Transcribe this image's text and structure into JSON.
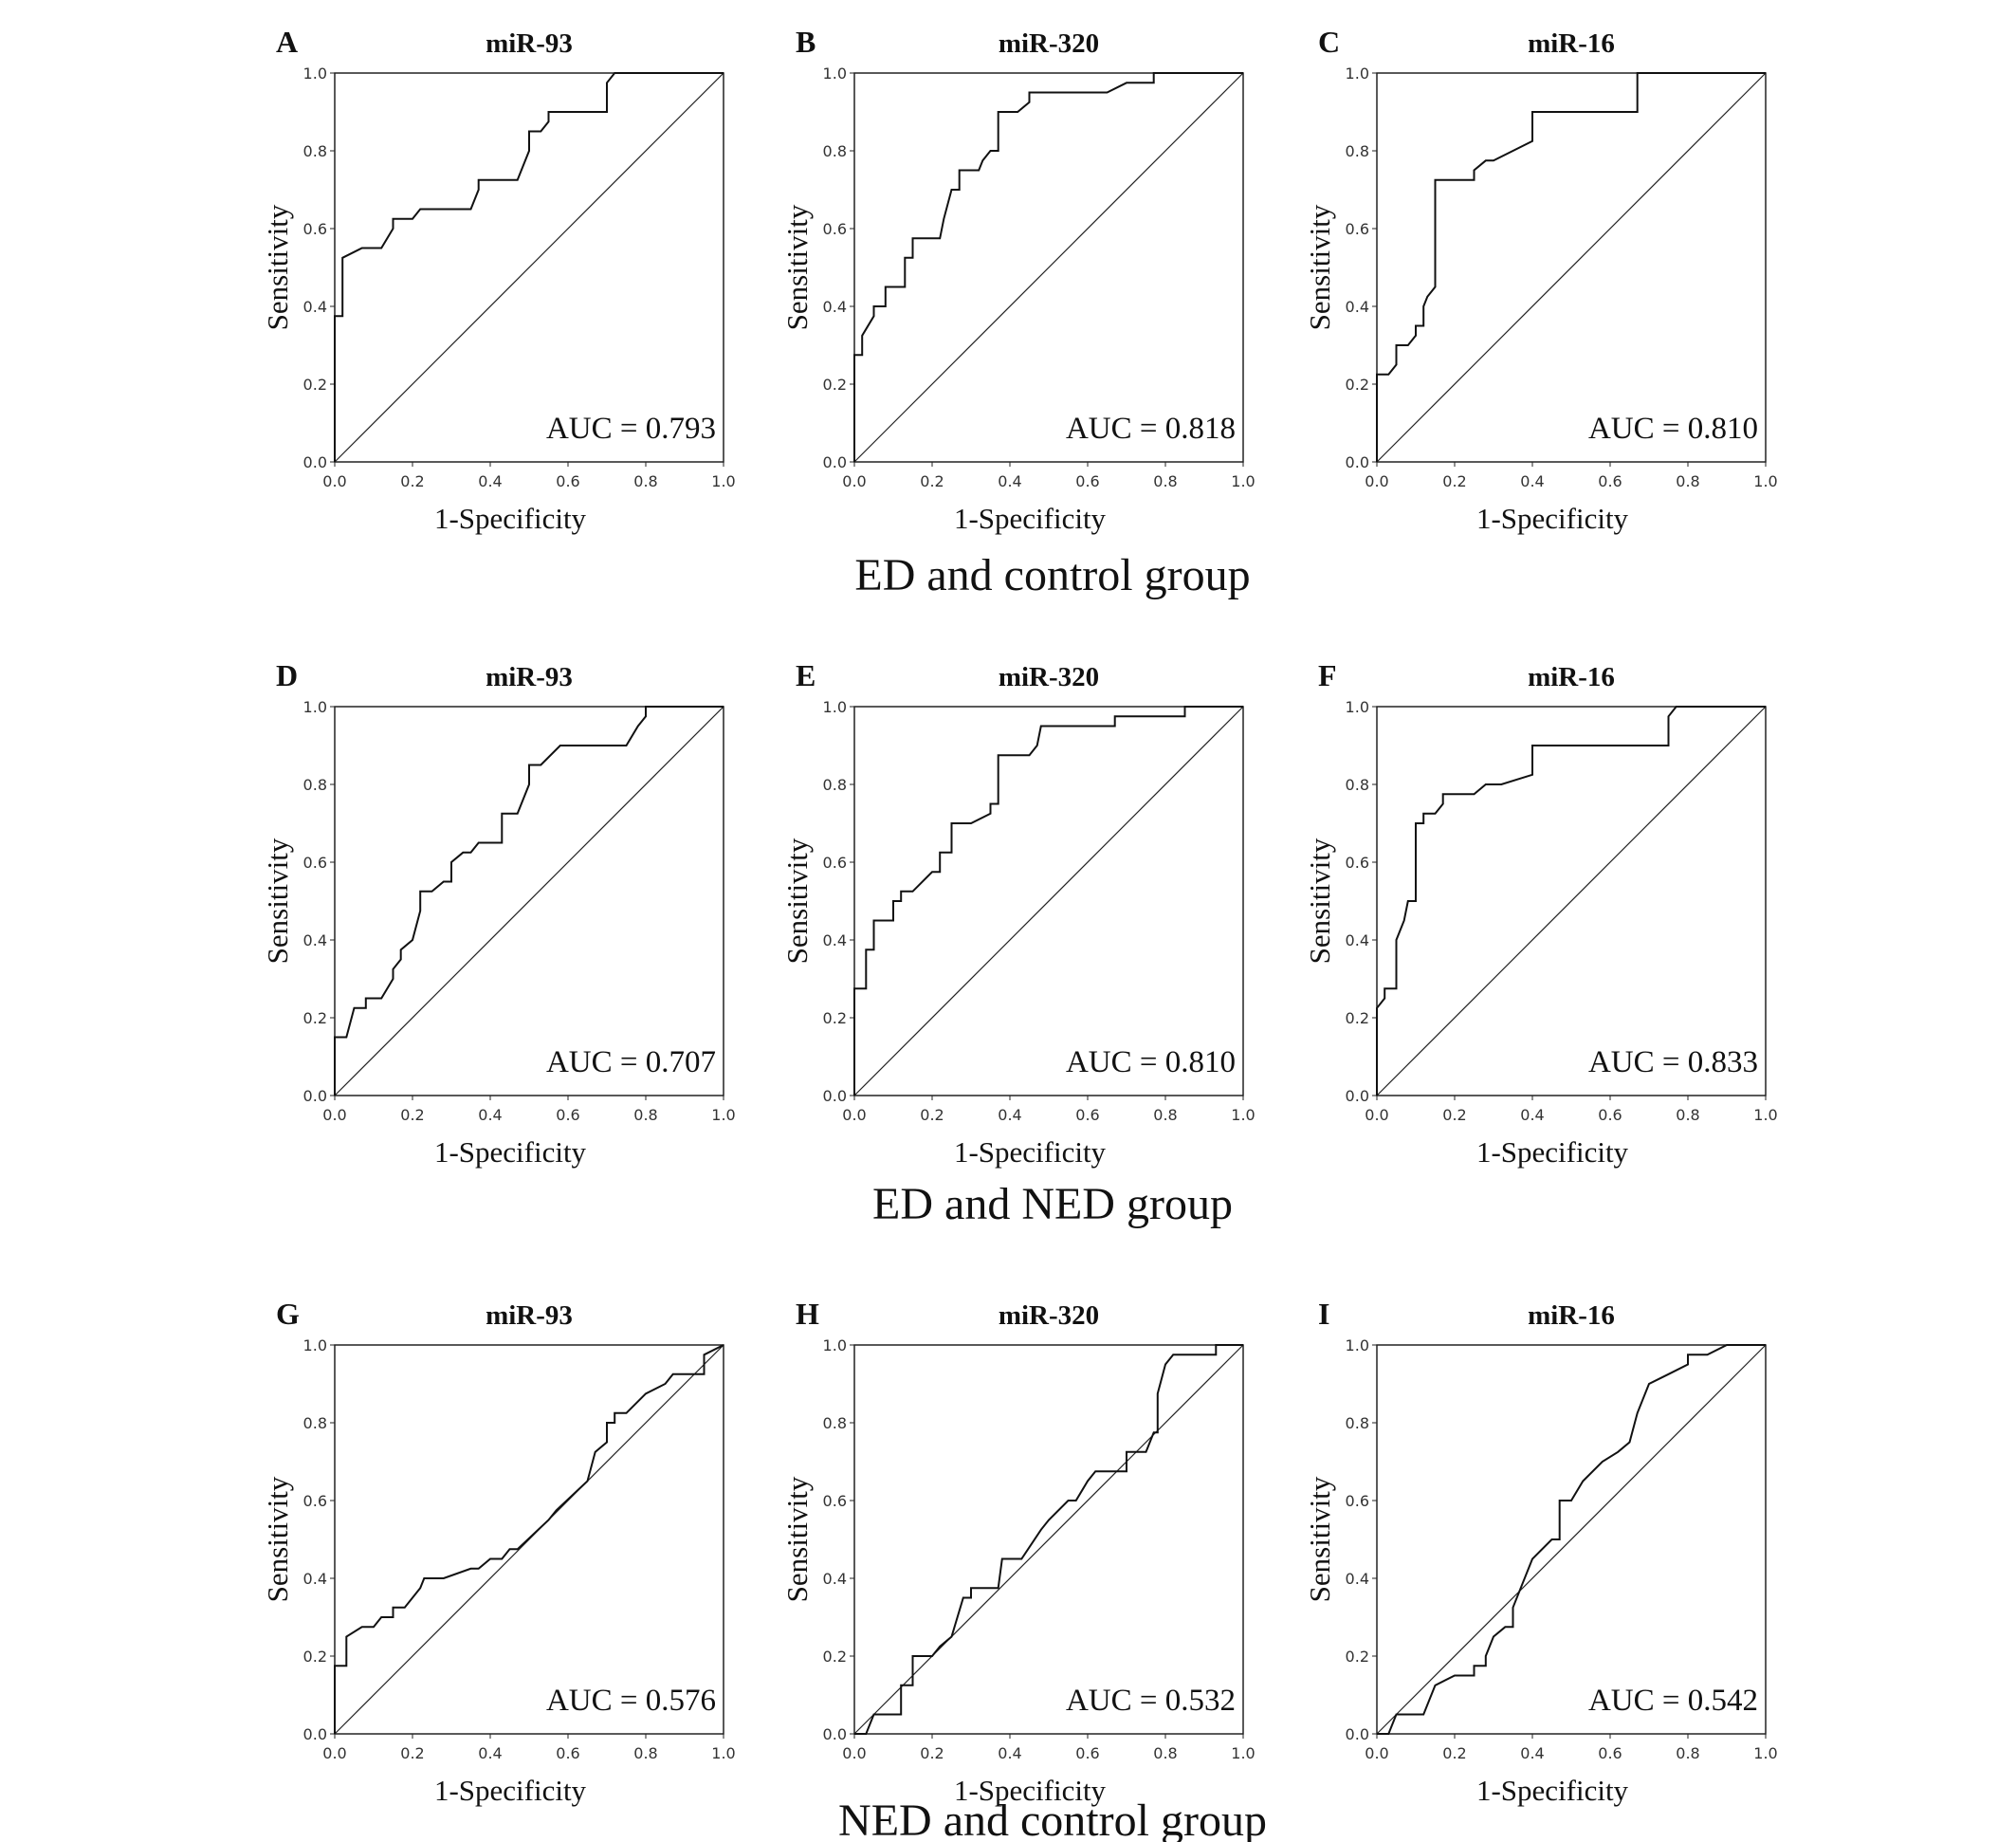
{
  "groups": [
    "ED and control group",
    "ED and NED group",
    "NED and control group"
  ],
  "chart_data": [
    {
      "type": "line",
      "panel": "A",
      "title": "miR-93",
      "group": "ED and control group",
      "xlabel": "1-Specificity",
      "ylabel": "Sensitivity",
      "xlim": [
        0,
        1
      ],
      "ylim": [
        0,
        1
      ],
      "xticks": [
        "0.0",
        "0.2",
        "0.4",
        "0.6",
        "0.8",
        "1.0"
      ],
      "yticks": [
        "0.0",
        "0.2",
        "0.4",
        "0.6",
        "0.8",
        "1.0"
      ],
      "annotation": "AUC = 0.793",
      "reference_line": true,
      "points": [
        [
          0,
          0
        ],
        [
          0,
          0.375
        ],
        [
          0.02,
          0.375
        ],
        [
          0.02,
          0.525
        ],
        [
          0.07,
          0.55
        ],
        [
          0.12,
          0.55
        ],
        [
          0.15,
          0.6
        ],
        [
          0.15,
          0.625
        ],
        [
          0.2,
          0.625
        ],
        [
          0.22,
          0.65
        ],
        [
          0.35,
          0.65
        ],
        [
          0.37,
          0.7
        ],
        [
          0.37,
          0.725
        ],
        [
          0.47,
          0.725
        ],
        [
          0.5,
          0.8
        ],
        [
          0.5,
          0.85
        ],
        [
          0.53,
          0.85
        ],
        [
          0.55,
          0.875
        ],
        [
          0.55,
          0.9
        ],
        [
          0.7,
          0.9
        ],
        [
          0.7,
          0.975
        ],
        [
          0.72,
          1
        ],
        [
          1,
          1
        ]
      ]
    },
    {
      "type": "line",
      "panel": "B",
      "title": "miR-320",
      "group": "ED and control group",
      "xlabel": "1-Specificity",
      "ylabel": "Sensitivity",
      "xlim": [
        0,
        1
      ],
      "ylim": [
        0,
        1
      ],
      "xticks": [
        "0.0",
        "0.2",
        "0.4",
        "0.6",
        "0.8",
        "1.0"
      ],
      "yticks": [
        "0.0",
        "0.2",
        "0.4",
        "0.6",
        "0.8",
        "1.0"
      ],
      "annotation": "AUC = 0.818",
      "reference_line": true,
      "points": [
        [
          0,
          0
        ],
        [
          0,
          0.275
        ],
        [
          0.02,
          0.275
        ],
        [
          0.02,
          0.325
        ],
        [
          0.05,
          0.375
        ],
        [
          0.05,
          0.4
        ],
        [
          0.08,
          0.4
        ],
        [
          0.08,
          0.45
        ],
        [
          0.13,
          0.45
        ],
        [
          0.13,
          0.525
        ],
        [
          0.15,
          0.525
        ],
        [
          0.15,
          0.575
        ],
        [
          0.22,
          0.575
        ],
        [
          0.23,
          0.625
        ],
        [
          0.25,
          0.7
        ],
        [
          0.27,
          0.7
        ],
        [
          0.27,
          0.75
        ],
        [
          0.32,
          0.75
        ],
        [
          0.33,
          0.775
        ],
        [
          0.35,
          0.8
        ],
        [
          0.37,
          0.8
        ],
        [
          0.37,
          0.9
        ],
        [
          0.42,
          0.9
        ],
        [
          0.45,
          0.925
        ],
        [
          0.45,
          0.95
        ],
        [
          0.65,
          0.95
        ],
        [
          0.7,
          0.975
        ],
        [
          0.77,
          0.975
        ],
        [
          0.77,
          1
        ],
        [
          1,
          1
        ]
      ]
    },
    {
      "type": "line",
      "panel": "C",
      "title": "miR-16",
      "group": "ED and control group",
      "xlabel": "1-Specificity",
      "ylabel": "Sensitivity",
      "xlim": [
        0,
        1
      ],
      "ylim": [
        0,
        1
      ],
      "xticks": [
        "0.0",
        "0.2",
        "0.4",
        "0.6",
        "0.8",
        "1.0"
      ],
      "yticks": [
        "0.0",
        "0.2",
        "0.4",
        "0.6",
        "0.8",
        "1.0"
      ],
      "annotation": "AUC = 0.810",
      "reference_line": true,
      "points": [
        [
          0,
          0
        ],
        [
          0,
          0.225
        ],
        [
          0.03,
          0.225
        ],
        [
          0.05,
          0.25
        ],
        [
          0.05,
          0.3
        ],
        [
          0.08,
          0.3
        ],
        [
          0.1,
          0.325
        ],
        [
          0.1,
          0.35
        ],
        [
          0.12,
          0.35
        ],
        [
          0.12,
          0.4
        ],
        [
          0.13,
          0.425
        ],
        [
          0.15,
          0.45
        ],
        [
          0.15,
          0.725
        ],
        [
          0.25,
          0.725
        ],
        [
          0.25,
          0.75
        ],
        [
          0.28,
          0.775
        ],
        [
          0.3,
          0.775
        ],
        [
          0.4,
          0.825
        ],
        [
          0.4,
          0.9
        ],
        [
          0.67,
          0.9
        ],
        [
          0.67,
          1
        ],
        [
          1,
          1
        ]
      ]
    },
    {
      "type": "line",
      "panel": "D",
      "title": "miR-93",
      "group": "ED and NED group",
      "xlabel": "1-Specificity",
      "ylabel": "Sensitivity",
      "xlim": [
        0,
        1
      ],
      "ylim": [
        0,
        1
      ],
      "xticks": [
        "0.0",
        "0.2",
        "0.4",
        "0.6",
        "0.8",
        "1.0"
      ],
      "yticks": [
        "0.0",
        "0.2",
        "0.4",
        "0.6",
        "0.8",
        "1.0"
      ],
      "annotation": "AUC = 0.707",
      "reference_line": true,
      "points": [
        [
          0,
          0
        ],
        [
          0,
          0.15
        ],
        [
          0.03,
          0.15
        ],
        [
          0.05,
          0.225
        ],
        [
          0.08,
          0.225
        ],
        [
          0.08,
          0.25
        ],
        [
          0.12,
          0.25
        ],
        [
          0.15,
          0.3
        ],
        [
          0.15,
          0.325
        ],
        [
          0.17,
          0.35
        ],
        [
          0.17,
          0.375
        ],
        [
          0.2,
          0.4
        ],
        [
          0.22,
          0.475
        ],
        [
          0.22,
          0.525
        ],
        [
          0.25,
          0.525
        ],
        [
          0.28,
          0.55
        ],
        [
          0.3,
          0.55
        ],
        [
          0.3,
          0.6
        ],
        [
          0.33,
          0.625
        ],
        [
          0.35,
          0.625
        ],
        [
          0.37,
          0.65
        ],
        [
          0.43,
          0.65
        ],
        [
          0.43,
          0.725
        ],
        [
          0.47,
          0.725
        ],
        [
          0.5,
          0.8
        ],
        [
          0.5,
          0.85
        ],
        [
          0.53,
          0.85
        ],
        [
          0.58,
          0.9
        ],
        [
          0.75,
          0.9
        ],
        [
          0.78,
          0.95
        ],
        [
          0.8,
          0.975
        ],
        [
          0.8,
          1
        ],
        [
          1,
          1
        ]
      ]
    },
    {
      "type": "line",
      "panel": "E",
      "title": "miR-320",
      "group": "ED and NED group",
      "xlabel": "1-Specificity",
      "ylabel": "Sensitivity",
      "xlim": [
        0,
        1
      ],
      "ylim": [
        0,
        1
      ],
      "xticks": [
        "0.0",
        "0.2",
        "0.4",
        "0.6",
        "0.8",
        "1.0"
      ],
      "yticks": [
        "0.0",
        "0.2",
        "0.4",
        "0.6",
        "0.8",
        "1.0"
      ],
      "annotation": "AUC = 0.810",
      "reference_line": true,
      "points": [
        [
          0,
          0
        ],
        [
          0,
          0.275
        ],
        [
          0.03,
          0.275
        ],
        [
          0.03,
          0.375
        ],
        [
          0.05,
          0.375
        ],
        [
          0.05,
          0.45
        ],
        [
          0.1,
          0.45
        ],
        [
          0.1,
          0.5
        ],
        [
          0.12,
          0.5
        ],
        [
          0.12,
          0.525
        ],
        [
          0.15,
          0.525
        ],
        [
          0.2,
          0.575
        ],
        [
          0.22,
          0.575
        ],
        [
          0.22,
          0.625
        ],
        [
          0.25,
          0.625
        ],
        [
          0.25,
          0.7
        ],
        [
          0.3,
          0.7
        ],
        [
          0.35,
          0.725
        ],
        [
          0.35,
          0.75
        ],
        [
          0.37,
          0.75
        ],
        [
          0.37,
          0.875
        ],
        [
          0.45,
          0.875
        ],
        [
          0.47,
          0.9
        ],
        [
          0.48,
          0.95
        ],
        [
          0.67,
          0.95
        ],
        [
          0.67,
          0.975
        ],
        [
          0.85,
          0.975
        ],
        [
          0.85,
          1
        ],
        [
          1,
          1
        ]
      ]
    },
    {
      "type": "line",
      "panel": "F",
      "title": "miR-16",
      "group": "ED and NED group",
      "xlabel": "1-Specificity",
      "ylabel": "Sensitivity",
      "xlim": [
        0,
        1
      ],
      "ylim": [
        0,
        1
      ],
      "xticks": [
        "0.0",
        "0.2",
        "0.4",
        "0.6",
        "0.8",
        "1.0"
      ],
      "yticks": [
        "0.0",
        "0.2",
        "0.4",
        "0.6",
        "0.8",
        "1.0"
      ],
      "annotation": "AUC = 0.833",
      "reference_line": true,
      "points": [
        [
          0,
          0
        ],
        [
          0,
          0.225
        ],
        [
          0.02,
          0.25
        ],
        [
          0.02,
          0.275
        ],
        [
          0.05,
          0.275
        ],
        [
          0.05,
          0.4
        ],
        [
          0.07,
          0.45
        ],
        [
          0.08,
          0.5
        ],
        [
          0.1,
          0.5
        ],
        [
          0.1,
          0.7
        ],
        [
          0.12,
          0.7
        ],
        [
          0.12,
          0.725
        ],
        [
          0.15,
          0.725
        ],
        [
          0.17,
          0.75
        ],
        [
          0.17,
          0.775
        ],
        [
          0.25,
          0.775
        ],
        [
          0.28,
          0.8
        ],
        [
          0.32,
          0.8
        ],
        [
          0.4,
          0.825
        ],
        [
          0.4,
          0.9
        ],
        [
          0.75,
          0.9
        ],
        [
          0.75,
          0.975
        ],
        [
          0.77,
          1
        ],
        [
          1,
          1
        ]
      ]
    },
    {
      "type": "line",
      "panel": "G",
      "title": "miR-93",
      "group": "NED and control group",
      "xlabel": "1-Specificity",
      "ylabel": "Sensitivity",
      "xlim": [
        0,
        1
      ],
      "ylim": [
        0,
        1
      ],
      "xticks": [
        "0.0",
        "0.2",
        "0.4",
        "0.6",
        "0.8",
        "1.0"
      ],
      "yticks": [
        "0.0",
        "0.2",
        "0.4",
        "0.6",
        "0.8",
        "1.0"
      ],
      "annotation": "AUC = 0.576",
      "reference_line": true,
      "points": [
        [
          0,
          0
        ],
        [
          0,
          0.175
        ],
        [
          0.03,
          0.175
        ],
        [
          0.03,
          0.25
        ],
        [
          0.07,
          0.275
        ],
        [
          0.1,
          0.275
        ],
        [
          0.12,
          0.3
        ],
        [
          0.15,
          0.3
        ],
        [
          0.15,
          0.325
        ],
        [
          0.18,
          0.325
        ],
        [
          0.22,
          0.375
        ],
        [
          0.23,
          0.4
        ],
        [
          0.28,
          0.4
        ],
        [
          0.35,
          0.425
        ],
        [
          0.37,
          0.425
        ],
        [
          0.4,
          0.45
        ],
        [
          0.43,
          0.45
        ],
        [
          0.45,
          0.475
        ],
        [
          0.47,
          0.475
        ],
        [
          0.55,
          0.55
        ],
        [
          0.57,
          0.575
        ],
        [
          0.65,
          0.65
        ],
        [
          0.67,
          0.725
        ],
        [
          0.7,
          0.75
        ],
        [
          0.7,
          0.8
        ],
        [
          0.72,
          0.8
        ],
        [
          0.72,
          0.825
        ],
        [
          0.75,
          0.825
        ],
        [
          0.8,
          0.875
        ],
        [
          0.85,
          0.9
        ],
        [
          0.87,
          0.925
        ],
        [
          0.95,
          0.925
        ],
        [
          0.95,
          0.975
        ],
        [
          1,
          1
        ]
      ]
    },
    {
      "type": "line",
      "panel": "H",
      "title": "miR-320",
      "group": "NED and control group",
      "xlabel": "1-Specificity",
      "ylabel": "Sensitivity",
      "xlim": [
        0,
        1
      ],
      "ylim": [
        0,
        1
      ],
      "xticks": [
        "0.0",
        "0.2",
        "0.4",
        "0.6",
        "0.8",
        "1.0"
      ],
      "yticks": [
        "0.0",
        "0.2",
        "0.4",
        "0.6",
        "0.8",
        "1.0"
      ],
      "annotation": "AUC = 0.532",
      "reference_line": true,
      "points": [
        [
          0,
          0
        ],
        [
          0.03,
          0
        ],
        [
          0.05,
          0.05
        ],
        [
          0.12,
          0.05
        ],
        [
          0.12,
          0.125
        ],
        [
          0.15,
          0.125
        ],
        [
          0.15,
          0.2
        ],
        [
          0.2,
          0.2
        ],
        [
          0.22,
          0.225
        ],
        [
          0.25,
          0.25
        ],
        [
          0.28,
          0.35
        ],
        [
          0.3,
          0.35
        ],
        [
          0.3,
          0.375
        ],
        [
          0.37,
          0.375
        ],
        [
          0.38,
          0.45
        ],
        [
          0.43,
          0.45
        ],
        [
          0.48,
          0.525
        ],
        [
          0.5,
          0.55
        ],
        [
          0.55,
          0.6
        ],
        [
          0.57,
          0.6
        ],
        [
          0.6,
          0.65
        ],
        [
          0.62,
          0.675
        ],
        [
          0.7,
          0.675
        ],
        [
          0.7,
          0.725
        ],
        [
          0.75,
          0.725
        ],
        [
          0.77,
          0.775
        ],
        [
          0.78,
          0.775
        ],
        [
          0.78,
          0.875
        ],
        [
          0.8,
          0.95
        ],
        [
          0.82,
          0.975
        ],
        [
          0.93,
          0.975
        ],
        [
          0.93,
          1
        ],
        [
          1,
          1
        ]
      ]
    },
    {
      "type": "line",
      "panel": "I",
      "title": "miR-16",
      "group": "NED and control group",
      "xlabel": "1-Specificity",
      "ylabel": "Sensitivity",
      "xlim": [
        0,
        1
      ],
      "ylim": [
        0,
        1
      ],
      "xticks": [
        "0.0",
        "0.2",
        "0.4",
        "0.6",
        "0.8",
        "1.0"
      ],
      "yticks": [
        "0.0",
        "0.2",
        "0.4",
        "0.6",
        "0.8",
        "1.0"
      ],
      "annotation": "AUC = 0.542",
      "reference_line": true,
      "points": [
        [
          0,
          0
        ],
        [
          0.03,
          0
        ],
        [
          0.05,
          0.05
        ],
        [
          0.12,
          0.05
        ],
        [
          0.15,
          0.125
        ],
        [
          0.2,
          0.15
        ],
        [
          0.25,
          0.15
        ],
        [
          0.25,
          0.175
        ],
        [
          0.28,
          0.175
        ],
        [
          0.28,
          0.2
        ],
        [
          0.3,
          0.25
        ],
        [
          0.33,
          0.275
        ],
        [
          0.35,
          0.275
        ],
        [
          0.35,
          0.325
        ],
        [
          0.4,
          0.45
        ],
        [
          0.45,
          0.5
        ],
        [
          0.47,
          0.5
        ],
        [
          0.47,
          0.6
        ],
        [
          0.5,
          0.6
        ],
        [
          0.53,
          0.65
        ],
        [
          0.58,
          0.7
        ],
        [
          0.62,
          0.725
        ],
        [
          0.65,
          0.75
        ],
        [
          0.67,
          0.825
        ],
        [
          0.7,
          0.9
        ],
        [
          0.75,
          0.925
        ],
        [
          0.8,
          0.95
        ],
        [
          0.8,
          0.975
        ],
        [
          0.85,
          0.975
        ],
        [
          0.9,
          1
        ],
        [
          1,
          1
        ]
      ]
    }
  ]
}
